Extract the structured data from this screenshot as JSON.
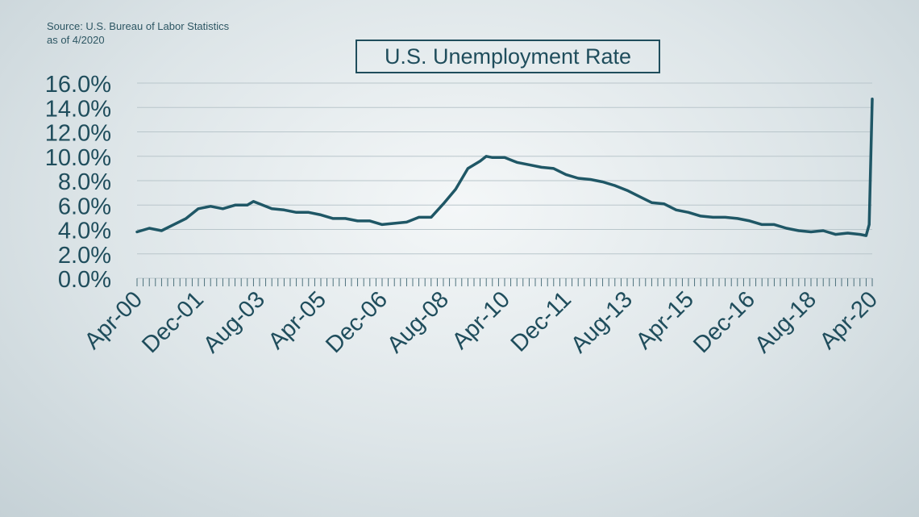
{
  "source_line1": "Source: U.S. Bureau of Labor Statistics",
  "source_line2": "as of 4/2020",
  "chart_data": {
    "type": "line",
    "title": "U.S. Unemployment Rate",
    "xlabel": "",
    "ylabel": "",
    "ylim": [
      0,
      16
    ],
    "y_tick_labels": [
      "0.0%",
      "2.0%",
      "4.0%",
      "6.0%",
      "8.0%",
      "10.0%",
      "12.0%",
      "14.0%",
      "16.0%"
    ],
    "y_tick_values": [
      0,
      2,
      4,
      6,
      8,
      10,
      12,
      14,
      16
    ],
    "x_tick_labels": [
      "Apr-00",
      "Dec-01",
      "Aug-03",
      "Apr-05",
      "Dec-06",
      "Aug-08",
      "Apr-10",
      "Dec-11",
      "Aug-13",
      "Apr-15",
      "Dec-16",
      "Aug-18",
      "Apr-20"
    ],
    "x_start": "Apr-00",
    "x_end": "Apr-20",
    "grid": true,
    "legend": "none",
    "line_color": "#1f5766",
    "series": [
      {
        "x": [
          "Apr-00",
          "Aug-00",
          "Dec-00",
          "Apr-01",
          "Aug-01",
          "Dec-01",
          "Apr-02",
          "Aug-02",
          "Dec-02",
          "Apr-03",
          "Jun-03",
          "Aug-03",
          "Dec-03",
          "Apr-04",
          "Aug-04",
          "Dec-04",
          "Apr-05",
          "Aug-05",
          "Dec-05",
          "Apr-06",
          "Aug-06",
          "Dec-06",
          "Apr-07",
          "Aug-07",
          "Dec-07",
          "Apr-08",
          "Aug-08",
          "Dec-08",
          "Apr-09",
          "Aug-09",
          "Oct-09",
          "Dec-09",
          "Apr-10",
          "Aug-10",
          "Dec-10",
          "Apr-11",
          "Aug-11",
          "Dec-11",
          "Apr-12",
          "Aug-12",
          "Dec-12",
          "Apr-13",
          "Aug-13",
          "Dec-13",
          "Apr-14",
          "Aug-14",
          "Dec-14",
          "Apr-15",
          "Aug-15",
          "Dec-15",
          "Apr-16",
          "Aug-16",
          "Dec-16",
          "Apr-17",
          "Aug-17",
          "Dec-17",
          "Apr-18",
          "Aug-18",
          "Dec-18",
          "Apr-19",
          "Aug-19",
          "Dec-19",
          "Feb-20",
          "Mar-20",
          "Apr-20"
        ],
        "values": [
          3.8,
          4.1,
          3.9,
          4.4,
          4.9,
          5.7,
          5.9,
          5.7,
          6.0,
          6.0,
          6.3,
          6.1,
          5.7,
          5.6,
          5.4,
          5.4,
          5.2,
          4.9,
          4.9,
          4.7,
          4.7,
          4.4,
          4.5,
          4.6,
          5.0,
          5.0,
          6.1,
          7.3,
          9.0,
          9.6,
          10.0,
          9.9,
          9.9,
          9.5,
          9.3,
          9.1,
          9.0,
          8.5,
          8.2,
          8.1,
          7.9,
          7.6,
          7.2,
          6.7,
          6.2,
          6.1,
          5.6,
          5.4,
          5.1,
          5.0,
          5.0,
          4.9,
          4.7,
          4.4,
          4.4,
          4.1,
          3.9,
          3.8,
          3.9,
          3.6,
          3.7,
          3.6,
          3.5,
          4.4,
          14.7
        ]
      }
    ]
  }
}
